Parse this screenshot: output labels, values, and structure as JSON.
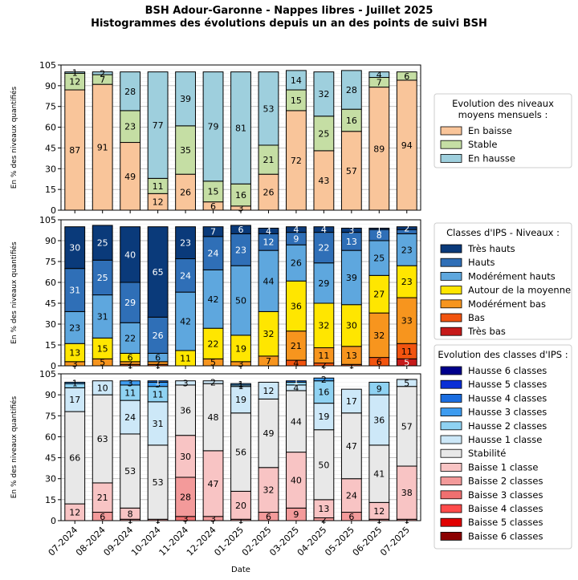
{
  "figure": {
    "title_line1": "BSH Adour-Garonne - Nappes libres - Juillet 2025",
    "title_line2": "Histogrammes des évolutions depuis un an des points de suivi BSH",
    "xlabel": "Date",
    "ylabel": "En % des niveaux quantifiés",
    "yticks": [
      0,
      15,
      30,
      45,
      60,
      75,
      90,
      105
    ]
  },
  "chart_data": [
    {
      "type": "bar",
      "stacked": true,
      "categories": [
        "07-2024",
        "08-2024",
        "09-2024",
        "10-2024",
        "11-2024",
        "12-2024",
        "01-2025",
        "02-2025",
        "03-2025",
        "04-2025",
        "05-2025",
        "06-2025",
        "07-2025"
      ],
      "ylim": [
        0,
        105
      ],
      "legend_title": "Evolution des niveaux\nmoyens mensuels :",
      "series": [
        {
          "name": "En baisse",
          "color": "#f9c59a",
          "values": [
            87,
            91,
            49,
            12,
            26,
            6,
            3,
            26,
            72,
            43,
            57,
            89,
            94
          ],
          "labels": [
            87,
            91,
            49,
            12,
            26,
            6,
            3,
            26,
            72,
            43,
            57,
            89,
            94
          ]
        },
        {
          "name": "Stable",
          "color": "#c5dea4",
          "values": [
            12,
            7,
            23,
            11,
            35,
            15,
            16,
            21,
            15,
            25,
            16,
            7,
            6
          ],
          "labels": [
            12,
            7,
            23,
            11,
            35,
            15,
            16,
            21,
            15,
            25,
            16,
            7,
            6
          ]
        },
        {
          "name": "En hausse",
          "color": "#9ecfdd",
          "values": [
            1,
            2,
            28,
            77,
            39,
            79,
            81,
            53,
            14,
            32,
            28,
            4,
            0
          ],
          "labels": [
            1,
            2,
            28,
            77,
            39,
            79,
            81,
            53,
            14,
            32,
            28,
            4,
            null
          ]
        }
      ]
    },
    {
      "type": "bar",
      "stacked": true,
      "categories": [
        "07-2024",
        "08-2024",
        "09-2024",
        "10-2024",
        "11-2024",
        "12-2024",
        "01-2025",
        "02-2025",
        "03-2025",
        "04-2025",
        "05-2025",
        "06-2025",
        "07-2025"
      ],
      "ylim": [
        0,
        105
      ],
      "legend_title": "Classes d'IPS - Niveaux :",
      "series": [
        {
          "name": "Très bas",
          "color": "#c61a1a",
          "values": [
            0,
            0,
            0,
            0,
            0,
            0,
            0,
            0,
            0,
            0,
            0,
            0,
            5
          ],
          "labels": [
            null,
            null,
            null,
            null,
            null,
            null,
            null,
            null,
            null,
            null,
            null,
            null,
            5
          ]
        },
        {
          "name": "Bas",
          "color": "#f2540f",
          "values": [
            0,
            0,
            1,
            1,
            0,
            0,
            0,
            0,
            4,
            2,
            1,
            6,
            11
          ],
          "labels": [
            null,
            null,
            1,
            1,
            null,
            null,
            null,
            null,
            4,
            2,
            1,
            6,
            11
          ]
        },
        {
          "name": "Modérément bas",
          "color": "#f7951e",
          "values": [
            3,
            5,
            2,
            2,
            0,
            5,
            3,
            7,
            21,
            11,
            13,
            32,
            33
          ],
          "labels": [
            3,
            5,
            2,
            2,
            null,
            5,
            3,
            7,
            21,
            11,
            13,
            32,
            33
          ]
        },
        {
          "name": "Autour de la moyenne",
          "color": "#ffe600",
          "values": [
            13,
            15,
            6,
            0,
            11,
            22,
            19,
            32,
            36,
            32,
            30,
            27,
            23
          ],
          "labels": [
            13,
            15,
            6,
            null,
            11,
            22,
            19,
            32,
            36,
            32,
            30,
            27,
            23
          ]
        },
        {
          "name": "Modérément hauts",
          "color": "#5ea7de",
          "values": [
            23,
            31,
            22,
            6,
            42,
            42,
            50,
            44,
            26,
            29,
            39,
            25,
            23
          ],
          "labels": [
            23,
            31,
            22,
            6,
            42,
            42,
            50,
            44,
            26,
            29,
            39,
            25,
            23
          ]
        },
        {
          "name": "Hauts",
          "color": "#2f6fb7",
          "values": [
            31,
            25,
            29,
            26,
            24,
            24,
            23,
            12,
            9,
            22,
            13,
            8,
            3
          ],
          "labels": [
            31,
            25,
            29,
            26,
            24,
            24,
            23,
            12,
            9,
            22,
            13,
            8,
            null
          ]
        },
        {
          "name": "Très hauts",
          "color": "#0a3a7a",
          "values": [
            30,
            25,
            40,
            65,
            23,
            7,
            6,
            4,
            4,
            4,
            3,
            1,
            2
          ],
          "labels": [
            30,
            25,
            40,
            65,
            23,
            7,
            6,
            4,
            4,
            4,
            3,
            1,
            2
          ]
        }
      ]
    },
    {
      "type": "bar",
      "stacked": true,
      "categories": [
        "07-2024",
        "08-2024",
        "09-2024",
        "10-2024",
        "11-2024",
        "12-2024",
        "01-2025",
        "02-2025",
        "03-2025",
        "04-2025",
        "05-2025",
        "06-2025",
        "07-2025"
      ],
      "ylim": [
        0,
        105
      ],
      "legend_title": "Evolution des classes d'IPS :",
      "series": [
        {
          "name": "Baisse 6 classes",
          "color": "#8b0000",
          "values": [
            0,
            0,
            0,
            0,
            0,
            0,
            0,
            0,
            0,
            0,
            0,
            0,
            0
          ],
          "labels": [
            null,
            null,
            null,
            null,
            null,
            null,
            null,
            null,
            null,
            null,
            null,
            null,
            null
          ]
        },
        {
          "name": "Baisse 5 classes",
          "color": "#e00000",
          "values": [
            0,
            0,
            0,
            0,
            0,
            0,
            0,
            0,
            0,
            0,
            0,
            0,
            0
          ],
          "labels": [
            null,
            null,
            null,
            null,
            null,
            null,
            null,
            null,
            null,
            null,
            null,
            null,
            null
          ]
        },
        {
          "name": "Baisse 4 classes",
          "color": "#ff4b4b",
          "values": [
            0,
            0,
            0,
            0,
            0,
            0,
            0,
            0,
            0,
            0,
            0,
            0,
            0
          ],
          "labels": [
            null,
            null,
            null,
            null,
            null,
            null,
            null,
            null,
            null,
            null,
            null,
            null,
            null
          ]
        },
        {
          "name": "Baisse 3 classes",
          "color": "#f07070",
          "values": [
            0,
            0,
            0,
            0,
            3,
            0,
            0,
            0,
            0,
            0,
            0,
            0,
            0
          ],
          "labels": [
            null,
            null,
            null,
            null,
            3,
            null,
            null,
            null,
            null,
            null,
            null,
            null,
            null
          ]
        },
        {
          "name": "Baisse 2 classes",
          "color": "#f39a9a",
          "values": [
            0,
            6,
            1,
            1,
            28,
            3,
            1,
            6,
            9,
            2,
            6,
            1,
            1
          ],
          "labels": [
            null,
            6,
            1,
            1,
            28,
            3,
            1,
            6,
            9,
            2,
            6,
            1,
            1
          ]
        },
        {
          "name": "Baisse 1 classe",
          "color": "#f8c4c4",
          "values": [
            12,
            21,
            8,
            0,
            30,
            47,
            20,
            32,
            40,
            13,
            24,
            12,
            38
          ],
          "labels": [
            12,
            21,
            8,
            null,
            30,
            47,
            20,
            32,
            40,
            13,
            24,
            12,
            38
          ]
        },
        {
          "name": "Stabilité",
          "color": "#e8e8e8",
          "values": [
            66,
            63,
            53,
            53,
            36,
            48,
            56,
            49,
            44,
            50,
            47,
            41,
            57
          ],
          "labels": [
            66,
            63,
            53,
            53,
            36,
            48,
            56,
            49,
            44,
            50,
            47,
            41,
            57
          ]
        },
        {
          "name": "Hausse 1 classe",
          "color": "#cde8f8",
          "values": [
            17,
            10,
            24,
            31,
            3,
            2,
            19,
            12,
            4,
            19,
            17,
            36,
            5
          ],
          "labels": [
            17,
            10,
            24,
            31,
            3,
            2,
            19,
            12,
            4,
            19,
            17,
            36,
            5
          ]
        },
        {
          "name": "Hausse 2 classes",
          "color": "#8fd2f2",
          "values": [
            3,
            0,
            11,
            11,
            0,
            0,
            1,
            0,
            2,
            16,
            0,
            9,
            0
          ],
          "labels": [
            null,
            null,
            11,
            11,
            null,
            null,
            1,
            null,
            null,
            16,
            null,
            9,
            null
          ]
        },
        {
          "name": "Hausse 3 classes",
          "color": "#3d9cf0",
          "values": [
            1,
            0,
            3,
            3,
            0,
            0,
            1,
            0,
            0,
            2,
            0,
            0,
            0
          ],
          "labels": [
            1,
            null,
            3,
            3,
            null,
            null,
            1,
            null,
            null,
            2,
            null,
            null,
            null
          ]
        },
        {
          "name": "Hausse 4 classes",
          "color": "#1a6de0",
          "values": [
            0,
            0,
            0,
            1,
            0,
            0,
            0,
            0,
            1,
            0,
            0,
            0,
            0
          ],
          "labels": [
            null,
            null,
            null,
            1,
            null,
            null,
            null,
            null,
            1,
            null,
            null,
            null,
            null
          ]
        },
        {
          "name": "Hausse 5 classes",
          "color": "#0a2fd6",
          "values": [
            0,
            0,
            0,
            0,
            0,
            0,
            0,
            0,
            0,
            0,
            0,
            0,
            0
          ],
          "labels": [
            null,
            null,
            null,
            null,
            null,
            null,
            null,
            null,
            null,
            null,
            null,
            null,
            null
          ]
        },
        {
          "name": "Hausse 6 classes",
          "color": "#00008b",
          "values": [
            0,
            0,
            0,
            0,
            0,
            0,
            0,
            0,
            0,
            0,
            0,
            0,
            0
          ],
          "labels": [
            null,
            null,
            null,
            null,
            null,
            null,
            null,
            null,
            null,
            null,
            null,
            null,
            null
          ]
        }
      ]
    }
  ]
}
